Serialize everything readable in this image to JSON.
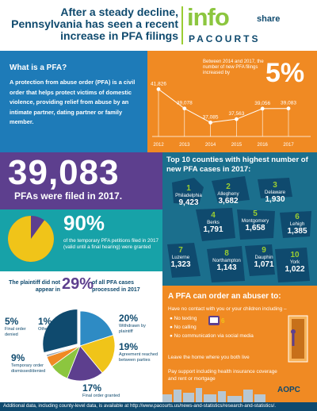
{
  "header": {
    "headline": "After a steady decline, Pennsylvania has seen a recent increase in PFA filings",
    "logo_info": "info",
    "logo_share": "share",
    "logo_pacourts": "PACOURTS"
  },
  "what_is_pfa": {
    "title": "What is a PFA?",
    "body": "A protection from abuse order (PFA) is a civil order that helps protect victims of domestic violence, providing relief from abuse by an intimate partner, dating partner or family member."
  },
  "filings_chart": {
    "intro": "Between 2014 and 2017, the number of new PFA filings increased by",
    "increase_pct": "5%"
  },
  "chart_data": {
    "type": "line",
    "title": "",
    "xlabel": "",
    "ylabel": "",
    "categories": [
      "2012",
      "2013",
      "2014",
      "2015",
      "2016",
      "2017"
    ],
    "values": [
      41826,
      39078,
      37085,
      37563,
      39056,
      39083
    ],
    "value_labels": [
      "41,826",
      "39,078",
      "37,085",
      "37,563",
      "39,056",
      "39,083"
    ],
    "ylim": [
      36000,
      43000
    ],
    "colors": {
      "line": "#ffffff",
      "dot": "#ffffff",
      "labels": "#ffffff"
    }
  },
  "big_stat": {
    "number": "39,083",
    "caption": "PFAs were filed in 2017."
  },
  "temporary": {
    "pct": "90%",
    "pct_value": 90,
    "text": "of the temporary PFA petitions filed in 2017 (valid until a final hearing) were granted"
  },
  "counties": {
    "title": "Top 10 counties with highest number of new PFA cases in 2017:",
    "items": [
      {
        "rank": "1",
        "name": "Philadelphia",
        "value": "9,423"
      },
      {
        "rank": "2",
        "name": "Allegheny",
        "value": "3,682"
      },
      {
        "rank": "3",
        "name": "Delaware",
        "value": "1,930"
      },
      {
        "rank": "4",
        "name": "Berks",
        "value": "1,791"
      },
      {
        "rank": "5",
        "name": "Montgomery",
        "value": "1,658"
      },
      {
        "rank": "6",
        "name": "Lehigh",
        "value": "1,385"
      },
      {
        "rank": "7",
        "name": "Luzerne",
        "value": "1,323"
      },
      {
        "rank": "8",
        "name": "Northampton",
        "value": "1,143"
      },
      {
        "rank": "9",
        "name": "Dauphin",
        "value": "1,071"
      },
      {
        "rank": "10",
        "name": "York",
        "value": "1,022"
      }
    ]
  },
  "plaintiff": {
    "text1": "The plaintiff did not appear in",
    "pct": "29%",
    "text2": "of all PFA cases processed in 2017",
    "slices": [
      {
        "label": "Withdrawn by plaintiff",
        "pct": "20%",
        "value": 20,
        "color": "#2e8bc4"
      },
      {
        "label": "Agreement reached between parties",
        "pct": "19%",
        "value": 19,
        "color": "#f0c419"
      },
      {
        "label": "Final order granted",
        "pct": "17%",
        "value": 17,
        "color": "#5d3f8e"
      },
      {
        "label": "Temporary order dismissed/denied",
        "pct": "9%",
        "value": 9,
        "color": "#8cc63f"
      },
      {
        "label": "Final order denied",
        "pct": "5%",
        "value": 5,
        "color": "#f08a23"
      },
      {
        "label": "Other",
        "pct": "1%",
        "value": 1,
        "color": "#9aa7b0"
      },
      {
        "label": "",
        "pct": "29%",
        "value": 29,
        "color": "#0f4a6e"
      }
    ]
  },
  "order": {
    "title": "A PFA can order an abuser to:",
    "sub": "Have no contact with you or your children including –",
    "items": [
      "No texting",
      "No calling",
      "No communication via social media"
    ],
    "leave": "Leave the home where you both live",
    "pay": "Pay support including health insurance coverage and rent or mortgage"
  },
  "footer": {
    "text": "Additional data, including county-level data, is available at http://www.pacourts.us/news-and-statistics/research-and-statistics/.",
    "aopc": "AOPC"
  }
}
